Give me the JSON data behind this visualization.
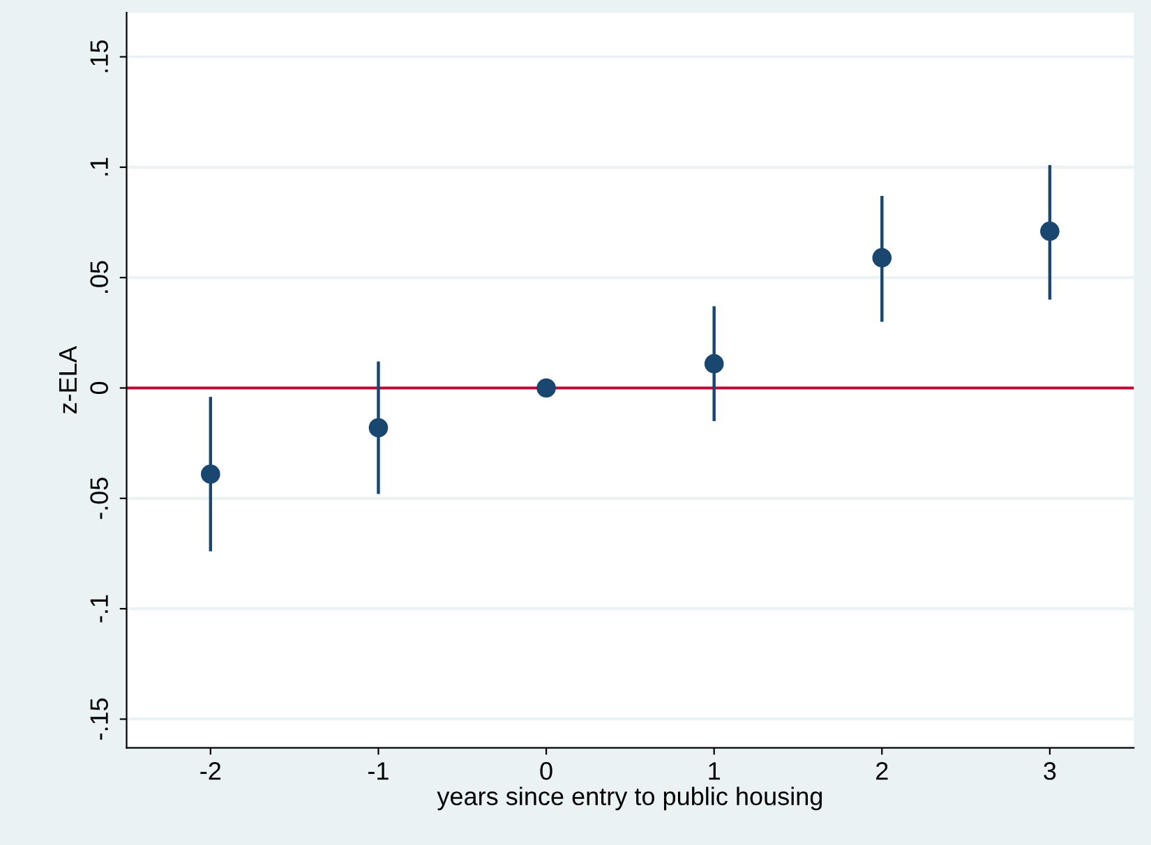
{
  "chart_data": {
    "type": "scatter",
    "xlabel": "years since entry to public housing",
    "ylabel": "z-ELA",
    "x": [
      -2,
      -1,
      0,
      1,
      2,
      3
    ],
    "series": [
      {
        "color": "#1a476f",
        "values": [
          -0.039,
          -0.018,
          0,
          0.011,
          0.059,
          0.071
        ],
        "errors": [
          [
            -0.074,
            -0.004
          ],
          [
            -0.048,
            0.012
          ],
          null,
          [
            -0.015,
            0.037
          ],
          [
            0.03,
            0.087
          ],
          [
            0.04,
            0.101
          ]
        ]
      }
    ],
    "xlim": [
      -2.5,
      3.5
    ],
    "xticks": [
      -2,
      -1,
      0,
      1,
      2,
      3
    ],
    "ylim": [
      -0.163,
      0.17
    ],
    "yticks": [
      {
        "value": -0.15,
        "label": "-.15"
      },
      {
        "value": -0.1,
        "label": "-.1"
      },
      {
        "value": -0.05,
        "label": "-.05"
      },
      {
        "value": 0,
        "label": "0"
      },
      {
        "value": 0.05,
        "label": ".05"
      },
      {
        "value": 0.1,
        "label": ".1"
      },
      {
        "value": 0.15,
        "label": ".15"
      }
    ],
    "ref_lines": [
      {
        "axis": "y",
        "value": 0,
        "color": "#c10534"
      }
    ],
    "grid": "y",
    "marker": "circle",
    "legend": false
  }
}
